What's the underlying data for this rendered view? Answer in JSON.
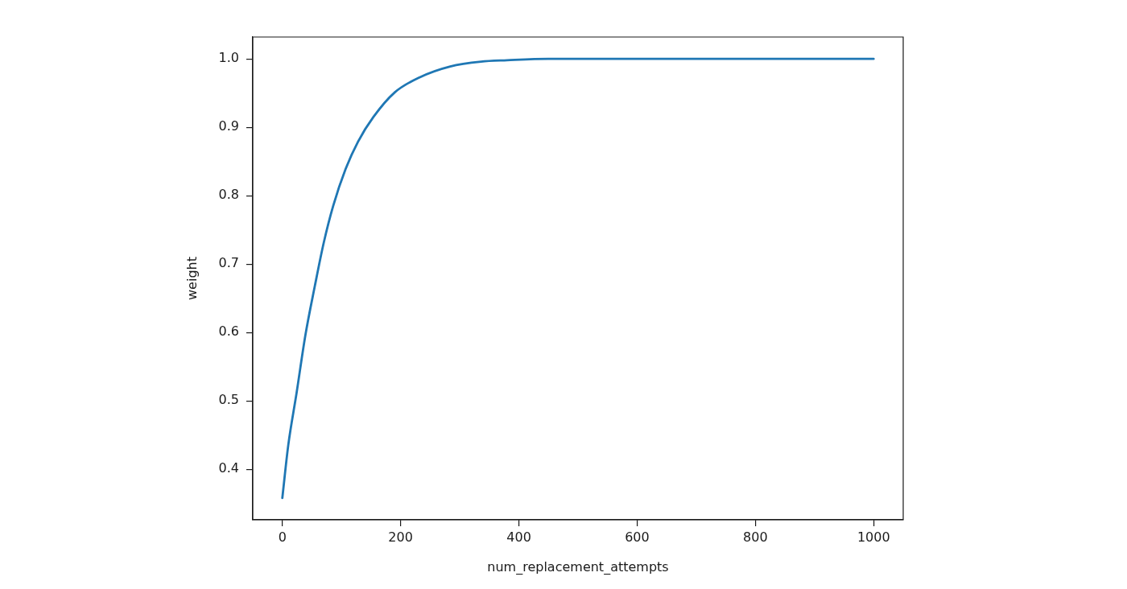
{
  "chart_data": {
    "type": "line",
    "xlabel": "num_replacement_attempts",
    "ylabel": "weight",
    "x": [
      0,
      10,
      24,
      39,
      55,
      70,
      86,
      107,
      128,
      154,
      190,
      232,
      284,
      336,
      380,
      450,
      550,
      700,
      850,
      1000
    ],
    "series": [
      {
        "color": "#1f77b4",
        "values": [
          0.358,
          0.435,
          0.511,
          0.596,
          0.668,
          0.731,
          0.785,
          0.839,
          0.879,
          0.915,
          0.951,
          0.973,
          0.989,
          0.996,
          0.998,
          1.0,
          1.0,
          1.0,
          1.0,
          1.0
        ]
      }
    ],
    "xlim": [
      -50,
      1050
    ],
    "ylim": [
      0.326,
      1.032
    ],
    "xticks": [
      0,
      200,
      400,
      600,
      800,
      1000
    ],
    "yticks": [
      0.4,
      0.5,
      0.6,
      0.7,
      0.8,
      0.9,
      {
        "value": 1,
        "label": "1.0"
      }
    ],
    "grid": false,
    "legend": false
  }
}
